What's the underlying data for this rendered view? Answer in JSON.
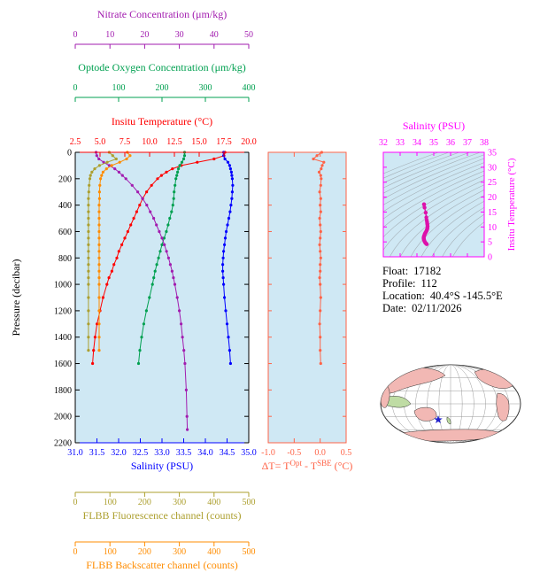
{
  "info": {
    "lines": [
      {
        "label": "Float:",
        "value": "17182"
      },
      {
        "label": "Profile:",
        "value": "112"
      },
      {
        "label": "Location:",
        "value": "40.4°S -145.5°E"
      },
      {
        "label": "Date:",
        "value": "02/11/2026"
      }
    ]
  },
  "chart_data": {
    "type": "line",
    "plot_bg": "#cfe8f4",
    "profile_plot": {
      "y_axis": {
        "label": "Pressure (decibar)",
        "min": 0,
        "max": 2200,
        "ticks": [
          0,
          200,
          400,
          600,
          800,
          1000,
          1200,
          1400,
          1600,
          1800,
          2000,
          2200
        ],
        "tick_labels": [
          "0",
          "200",
          "400",
          "600",
          "800",
          "1000",
          "1200",
          "1400",
          "1600",
          "1800",
          "2000",
          "2200"
        ],
        "color": "#000000"
      },
      "x_axes": [
        {
          "id": "nitrate",
          "label": "Nitrate Concentration (μm/kg)",
          "color": "#a21caf",
          "min": 0,
          "max": 50,
          "ticks": [
            0,
            10,
            20,
            30,
            40,
            50
          ],
          "tick_labels": [
            "0",
            "10",
            "20",
            "30",
            "40",
            "50"
          ],
          "side": "top"
        },
        {
          "id": "oxygen",
          "label": "Optode Oxygen Concentration (μm/kg)",
          "color": "#00a050",
          "min": 0,
          "max": 400,
          "ticks": [
            0,
            100,
            200,
            300,
            400
          ],
          "tick_labels": [
            "0",
            "100",
            "200",
            "300",
            "400"
          ],
          "side": "top"
        },
        {
          "id": "temperature",
          "label": "Insitu Temperature (°C)",
          "color": "#ff0000",
          "min": 2.5,
          "max": 20,
          "ticks": [
            2.5,
            5,
            7.5,
            10,
            12.5,
            15,
            17.5,
            20
          ],
          "tick_labels": [
            "2.5",
            "5.0",
            "7.5",
            "10.0",
            "12.5",
            "15.0",
            "17.5",
            "20.0"
          ],
          "side": "top"
        },
        {
          "id": "salinity",
          "label": "Salinity (PSU)",
          "color": "#0000ff",
          "min": 31,
          "max": 35,
          "ticks": [
            31,
            31.5,
            32,
            32.5,
            33,
            33.5,
            34,
            34.5,
            35
          ],
          "tick_labels": [
            "31.0",
            "31.5",
            "32.0",
            "32.5",
            "33.0",
            "33.5",
            "34.0",
            "34.5",
            "35.0"
          ],
          "side": "bottom"
        },
        {
          "id": "fluorescence",
          "label": "FLBB Fluorescence channel (counts)",
          "color": "#ac9f2e",
          "min": 0,
          "max": 500,
          "ticks": [
            0,
            100,
            200,
            300,
            400,
            500
          ],
          "tick_labels": [
            "0",
            "100",
            "200",
            "300",
            "400",
            "500"
          ],
          "side": "bottom"
        },
        {
          "id": "backscatter",
          "label": "FLBB Backscatter channel (counts)",
          "color": "#ff8c00",
          "min": 0,
          "max": 500,
          "ticks": [
            0,
            100,
            200,
            300,
            400,
            500
          ],
          "tick_labels": [
            "0",
            "100",
            "200",
            "300",
            "400",
            "500"
          ],
          "side": "bottom"
        }
      ],
      "series": [
        {
          "axis": "temperature",
          "color": "#ff0000",
          "pressure": [
            0,
            25,
            50,
            75,
            100,
            125,
            150,
            175,
            200,
            250,
            300,
            350,
            400,
            450,
            500,
            550,
            600,
            650,
            700,
            750,
            800,
            850,
            900,
            950,
            1000,
            1100,
            1200,
            1300,
            1400,
            1500,
            1600
          ],
          "values": [
            17.6,
            17.5,
            16.5,
            14.8,
            13.2,
            12.3,
            11.7,
            11.2,
            10.8,
            10.2,
            9.7,
            9.3,
            9.0,
            8.7,
            8.4,
            8.1,
            7.8,
            7.5,
            7.2,
            6.9,
            6.7,
            6.4,
            6.2,
            5.9,
            5.7,
            5.3,
            5.0,
            4.7,
            4.5,
            4.35,
            4.25
          ]
        },
        {
          "axis": "salinity",
          "color": "#0000ff",
          "pressure": [
            0,
            25,
            50,
            75,
            100,
            125,
            150,
            175,
            200,
            250,
            300,
            350,
            400,
            450,
            500,
            550,
            600,
            650,
            700,
            750,
            800,
            850,
            900,
            950,
            1000,
            1100,
            1200,
            1300,
            1400,
            1500,
            1600
          ],
          "values": [
            34.42,
            34.42,
            34.45,
            34.52,
            34.56,
            34.58,
            34.6,
            34.61,
            34.62,
            34.63,
            34.62,
            34.61,
            34.59,
            34.57,
            34.54,
            34.51,
            34.48,
            34.46,
            34.44,
            34.42,
            34.41,
            34.4,
            34.4,
            34.41,
            34.42,
            34.44,
            34.47,
            34.5,
            34.53,
            34.56,
            34.58
          ]
        },
        {
          "axis": "oxygen",
          "color": "#00a050",
          "pressure": [
            0,
            25,
            50,
            75,
            100,
            125,
            150,
            175,
            200,
            250,
            300,
            350,
            400,
            450,
            500,
            550,
            600,
            650,
            700,
            750,
            800,
            850,
            900,
            950,
            1000,
            1100,
            1200,
            1300,
            1400,
            1500,
            1600
          ],
          "values": [
            252,
            252,
            250,
            246,
            241,
            238,
            236,
            234,
            232,
            230,
            228,
            227,
            225,
            222,
            218,
            214,
            210,
            205,
            200,
            196,
            192,
            188,
            184,
            181,
            178,
            171,
            164,
            158,
            153,
            149,
            146
          ]
        },
        {
          "axis": "nitrate",
          "color": "#a21caf",
          "pressure": [
            0,
            25,
            50,
            75,
            100,
            125,
            150,
            175,
            200,
            250,
            300,
            350,
            400,
            450,
            500,
            550,
            600,
            650,
            700,
            750,
            800,
            850,
            900,
            950,
            1000,
            1100,
            1200,
            1300,
            1400,
            1500,
            1600,
            1800,
            2000,
            2100
          ],
          "values": [
            6.0,
            6.2,
            6.8,
            8.2,
            9.8,
            11.4,
            12.6,
            13.6,
            14.6,
            16.4,
            18.0,
            19.4,
            20.6,
            21.6,
            22.6,
            23.4,
            24.2,
            25.0,
            25.7,
            26.3,
            26.9,
            27.4,
            27.9,
            28.3,
            28.7,
            29.4,
            30.0,
            30.5,
            30.9,
            31.3,
            31.6,
            32.0,
            32.2,
            32.3
          ]
        },
        {
          "axis": "fluorescence",
          "color": "#ac9f2e",
          "pressure": [
            0,
            25,
            50,
            75,
            100,
            125,
            150,
            175,
            200,
            250,
            300,
            350,
            400,
            450,
            500,
            550,
            600,
            650,
            700,
            750,
            800,
            850,
            900,
            950,
            1000,
            1100,
            1200,
            1300,
            1400,
            1500
          ],
          "values": [
            98,
            108,
            118,
            92,
            70,
            56,
            48,
            44,
            42,
            40,
            39,
            38,
            38,
            38,
            38,
            38,
            38,
            38,
            38,
            38,
            38,
            38,
            38,
            38,
            38,
            38,
            38,
            38,
            38,
            38
          ]
        },
        {
          "axis": "backscatter",
          "color": "#ff8c00",
          "pressure": [
            0,
            25,
            50,
            75,
            100,
            125,
            150,
            175,
            200,
            250,
            300,
            350,
            400,
            450,
            500,
            550,
            600,
            650,
            700,
            750,
            800,
            850,
            900,
            950,
            1000,
            1100,
            1200,
            1300,
            1400,
            1500
          ],
          "values": [
            150,
            158,
            148,
            128,
            105,
            90,
            80,
            76,
            73,
            71,
            70,
            70,
            69,
            69,
            69,
            69,
            69,
            69,
            69,
            69,
            69,
            69,
            69,
            69,
            69,
            69,
            69,
            69,
            69,
            69
          ]
        }
      ]
    },
    "delta_plot": {
      "color": "#ff6347",
      "x_axis": {
        "min": -1.0,
        "max": 0.5,
        "ticks": [
          -1.0,
          -0.5,
          0.0,
          0.5
        ],
        "tick_labels": [
          "-1.0",
          "-0.5",
          "0.0",
          "0.5"
        ],
        "label_parts": [
          {
            "t": "ΔT= T"
          },
          {
            "t": "Opt",
            "sup": true
          },
          {
            "t": " - T"
          },
          {
            "t": "SBE",
            "sup": true
          },
          {
            "t": " (°C)"
          }
        ]
      },
      "series": {
        "pressure": [
          0,
          25,
          50,
          75,
          100,
          125,
          150,
          175,
          200,
          250,
          300,
          350,
          400,
          450,
          500,
          550,
          600,
          650,
          700,
          750,
          800,
          850,
          900,
          950,
          1000,
          1100,
          1200,
          1300,
          1400,
          1500,
          1600
        ],
        "values": [
          0.03,
          -0.06,
          -0.13,
          0.07,
          0.04,
          0.02,
          -0.02,
          0.01,
          0.02,
          0.01,
          -0.01,
          0.01,
          0.0,
          0.01,
          -0.01,
          0.0,
          0.01,
          0.0,
          -0.01,
          0.0,
          0.01,
          0.0,
          0.0,
          -0.01,
          0.0,
          0.01,
          0.0,
          -0.01,
          0.0,
          0.0,
          0.01
        ]
      }
    },
    "ts_plot": {
      "frame_color": "#ff00ff",
      "series_color": "#dd11aa",
      "x_axis": {
        "label": "Salinity (PSU)",
        "min": 32,
        "max": 38,
        "ticks": [
          32,
          33,
          34,
          35,
          36,
          37,
          38
        ],
        "tick_labels": [
          "32",
          "33",
          "34",
          "35",
          "36",
          "37",
          "38"
        ]
      },
      "y_axis": {
        "label": "Insitu Temperature (°C)",
        "min": 0,
        "max": 35,
        "ticks": [
          0,
          5,
          10,
          15,
          20,
          25,
          30,
          35
        ],
        "tick_labels": [
          "0",
          "5",
          "10",
          "15",
          "20",
          "25",
          "30",
          "35"
        ]
      },
      "isopycnals": {
        "color": "#9aa0a6",
        "sigma_values": [
          20,
          20.5,
          21,
          21.5,
          22,
          22.5,
          23,
          23.5,
          24,
          24.5,
          25,
          25.5,
          26,
          26.5,
          27,
          27.5,
          28,
          28.5,
          29
        ]
      }
    },
    "map": {
      "ocean": "#ffffff",
      "land": "#f2b8b4",
      "land2": "#bfdca4",
      "outline": "#333333",
      "grid": "#999999",
      "star_color": "#2222cc"
    }
  }
}
